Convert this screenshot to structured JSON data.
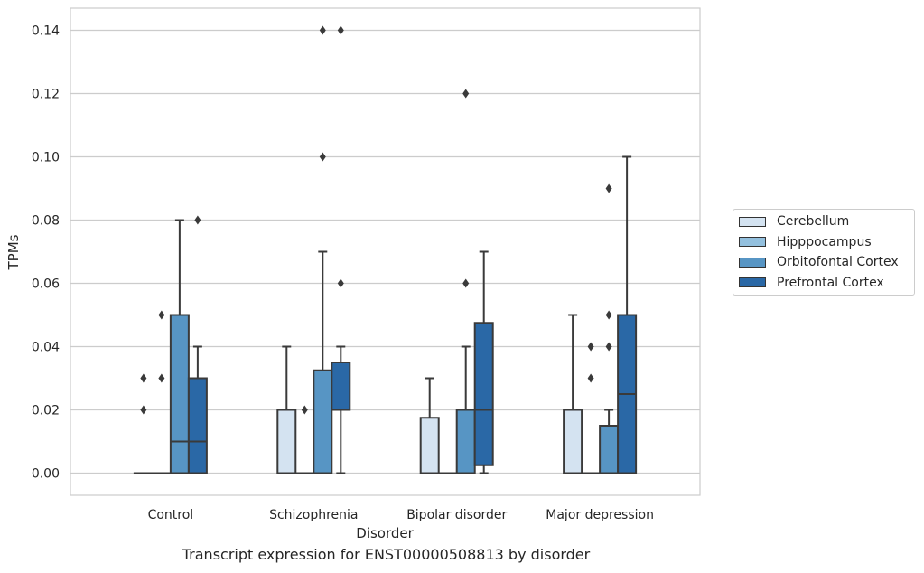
{
  "chart_data": {
    "type": "box",
    "title": "",
    "caption": "Transcript expression for ENST00000508813 by disorder",
    "xlabel": "Disorder",
    "ylabel": "TPMs",
    "ylim": [
      -0.007,
      0.147
    ],
    "yticks": [
      0.0,
      0.02,
      0.04,
      0.06,
      0.08,
      0.1,
      0.12,
      0.14
    ],
    "ytick_labels": [
      "0.00",
      "0.02",
      "0.04",
      "0.06",
      "0.08",
      "0.10",
      "0.12",
      "0.14"
    ],
    "grid": true,
    "legend_position": "right",
    "categories": [
      "Control",
      "Schizophrenia",
      "Bipolar disorder",
      "Major depression"
    ],
    "series": [
      {
        "name": "Cerebellum",
        "color": "#d4e3f1",
        "boxes": [
          {
            "q1": 0,
            "median": 0,
            "q3": 0,
            "whisker_low": 0,
            "whisker_high": 0,
            "outliers": [
              0.02,
              0.03
            ]
          },
          {
            "q1": 0,
            "median": 0,
            "q3": 0.02,
            "whisker_low": 0,
            "whisker_high": 0.04,
            "outliers": []
          },
          {
            "q1": 0,
            "median": 0,
            "q3": 0.0175,
            "whisker_low": 0,
            "whisker_high": 0.03,
            "outliers": []
          },
          {
            "q1": 0,
            "median": 0,
            "q3": 0.02,
            "whisker_low": 0,
            "whisker_high": 0.05,
            "outliers": []
          }
        ]
      },
      {
        "name": "Hipppocampus",
        "color": "#93c0de",
        "boxes": [
          {
            "q1": 0,
            "median": 0,
            "q3": 0,
            "whisker_low": 0,
            "whisker_high": 0,
            "outliers": [
              0.03,
              0.05
            ]
          },
          {
            "q1": 0,
            "median": 0,
            "q3": 0,
            "whisker_low": 0,
            "whisker_high": 0,
            "outliers": [
              0.02
            ]
          },
          {
            "q1": 0,
            "median": 0,
            "q3": 0,
            "whisker_low": 0,
            "whisker_high": 0,
            "outliers": []
          },
          {
            "q1": 0,
            "median": 0,
            "q3": 0,
            "whisker_low": 0,
            "whisker_high": 0,
            "outliers": [
              0.03,
              0.04
            ]
          }
        ]
      },
      {
        "name": "Orbitofontal Cortex",
        "color": "#5795c4",
        "boxes": [
          {
            "q1": 0,
            "median": 0.01,
            "q3": 0.05,
            "whisker_low": 0,
            "whisker_high": 0.08,
            "outliers": []
          },
          {
            "q1": 0,
            "median": 0,
            "q3": 0.0325,
            "whisker_low": 0,
            "whisker_high": 0.07,
            "outliers": [
              0.1,
              0.14
            ]
          },
          {
            "q1": 0,
            "median": 0,
            "q3": 0.02,
            "whisker_low": 0,
            "whisker_high": 0.04,
            "outliers": [
              0.06,
              0.12
            ]
          },
          {
            "q1": 0,
            "median": 0,
            "q3": 0.015,
            "whisker_low": 0,
            "whisker_high": 0.02,
            "outliers": [
              0.04,
              0.05,
              0.09
            ]
          }
        ]
      },
      {
        "name": "Prefrontal Cortex",
        "color": "#2a68a6",
        "boxes": [
          {
            "q1": 0,
            "median": 0.01,
            "q3": 0.03,
            "whisker_low": 0,
            "whisker_high": 0.04,
            "outliers": [
              0.08
            ]
          },
          {
            "q1": 0.02,
            "median": 0.02,
            "q3": 0.035,
            "whisker_low": 0,
            "whisker_high": 0.04,
            "outliers": [
              0.06,
              0.14
            ]
          },
          {
            "q1": 0.0025,
            "median": 0.02,
            "q3": 0.0475,
            "whisker_low": 0,
            "whisker_high": 0.07,
            "outliers": []
          },
          {
            "q1": 0,
            "median": 0.025,
            "q3": 0.05,
            "whisker_low": 0,
            "whisker_high": 0.1,
            "outliers": []
          }
        ]
      }
    ]
  }
}
